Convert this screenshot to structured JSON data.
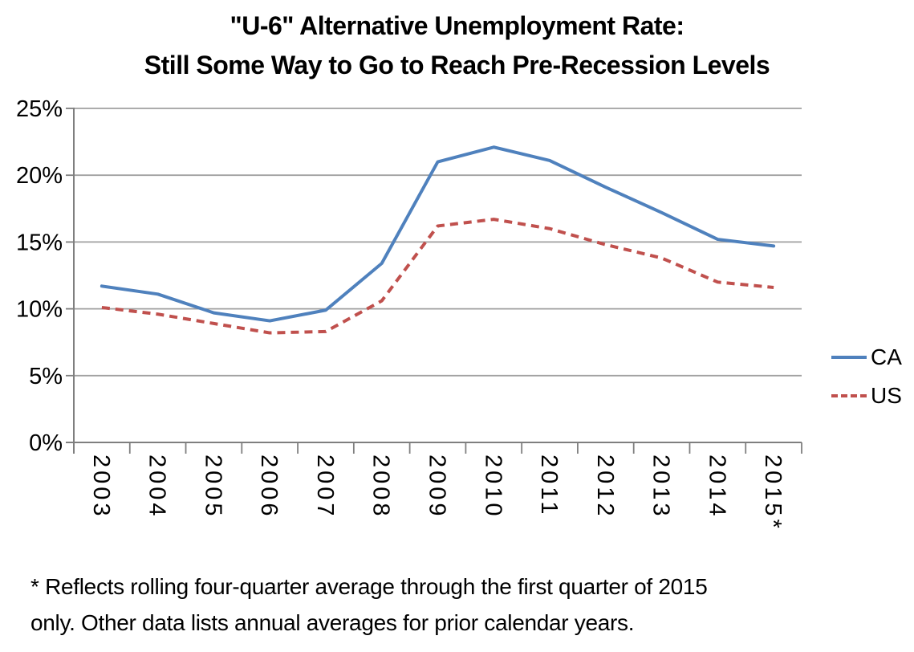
{
  "title": {
    "line1": "\"U-6\" Alternative Unemployment Rate:",
    "line2": "Still Some Way to Go to Reach Pre-Recession Levels"
  },
  "legend": {
    "entries": [
      {
        "label": "CA",
        "color": "#4F81BD",
        "line_style": "solid"
      },
      {
        "label": "US",
        "color": "#C0504D",
        "line_style": "dashed"
      }
    ]
  },
  "footnote": {
    "line1": "* Reflects rolling four-quarter average through the first quarter of 2015",
    "line2": "only. Other data lists annual averages for prior calendar years."
  },
  "chart_data": {
    "type": "line",
    "title": "\"U-6\" Alternative Unemployment Rate: Still Some Way to Go to Reach Pre-Recession Levels",
    "categories": [
      "2003",
      "2004",
      "2005",
      "2006",
      "2007",
      "2008",
      "2009",
      "2010",
      "2011",
      "2012",
      "2013",
      "2014",
      "2015*"
    ],
    "series": [
      {
        "name": "CA",
        "color": "#4F81BD",
        "line_style": "solid",
        "values": [
          11.7,
          11.1,
          9.7,
          9.1,
          9.9,
          13.4,
          21.0,
          22.1,
          21.1,
          19.1,
          17.2,
          15.2,
          14.7
        ]
      },
      {
        "name": "US",
        "color": "#C0504D",
        "line_style": "dashed",
        "values": [
          10.1,
          9.6,
          8.9,
          8.2,
          8.3,
          10.6,
          16.2,
          16.7,
          16.0,
          14.8,
          13.8,
          12.0,
          11.6
        ]
      }
    ],
    "ylim": [
      0,
      25
    ],
    "yticks": [
      0,
      5,
      10,
      15,
      20,
      25
    ],
    "y_tick_labels": [
      "0%",
      "5%",
      "10%",
      "15%",
      "20%",
      "25%"
    ],
    "xlabel": "",
    "ylabel": "",
    "grid": true,
    "legend_position": "right",
    "gridline_color": "#A0A0A0",
    "axis_color": "#7F7F7F",
    "text_color": "#000000"
  }
}
